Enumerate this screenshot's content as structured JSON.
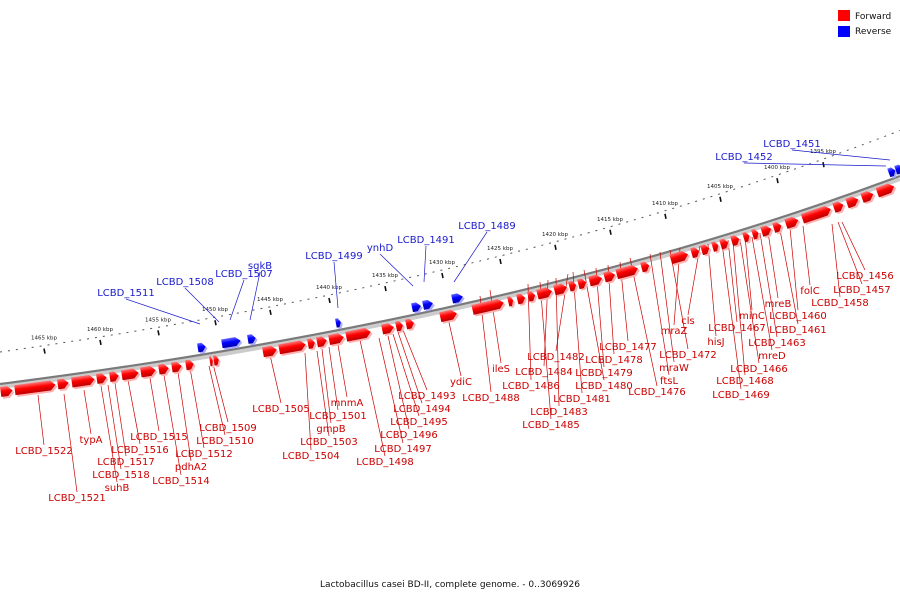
{
  "legend": [
    {
      "label": "Forward",
      "color": "#ff0000"
    },
    {
      "label": "Reverse",
      "color": "#0000ff"
    }
  ],
  "caption": "Lactobacillus casei BD-II, complete genome. - 0..3069926",
  "colors": {
    "forward": "#ff0000",
    "reverse": "#0000ff",
    "backbone": "#808080"
  },
  "ticks": [
    "1395 kbp",
    "1400 kbp",
    "1405 kbp",
    "1410 kbp",
    "1415 kbp",
    "1420 kbp",
    "1425 kbp",
    "1430 kbp",
    "1435 kbp",
    "1440 kbp",
    "1445 kbp",
    "1450 kbp",
    "1455 kbp",
    "1460 kbp",
    "1465 kbp"
  ],
  "forward_labels": [
    "LCBD_1456",
    "LCBD_1457",
    "LCBD_1458",
    "folC",
    "LCBD_1460",
    "LCBD_1461",
    "mreB",
    "LCBD_1463",
    "minC",
    "mreD",
    "LCBD_1466",
    "LCBD_1467",
    "LCBD_1468",
    "LCBD_1469",
    "hisJ",
    "cls",
    "mraZ",
    "LCBD_1472",
    "mraW",
    "ftsL",
    "LCBD_1476",
    "LCBD_1477",
    "LCBD_1478",
    "LCBD_1479",
    "LCBD_1480",
    "LCBD_1481",
    "LCBD_1482",
    "LCBD_1483",
    "LCBD_1484",
    "LCBD_1485",
    "LCBD_1486",
    "ileS",
    "LCBD_1488",
    "ydiC",
    "LCBD_1493",
    "LCBD_1494",
    "LCBD_1495",
    "LCBD_1496",
    "LCBD_1497",
    "LCBD_1498",
    "mnmA",
    "LCBD_1501",
    "gmpB",
    "LCBD_1503",
    "LCBD_1504",
    "LCBD_1505",
    "LCBD_1509",
    "LCBD_1510",
    "LCBD_1512",
    "pdhA2",
    "LCBD_1514",
    "LCBD_1515",
    "LCBD_1516",
    "LCBD_1517",
    "LCBD_1518",
    "suhB",
    "typA",
    "LCBD_1521",
    "LCBD_1522"
  ],
  "reverse_labels": [
    "LCBD_1451",
    "LCBD_1452",
    "LCBD_1489",
    "LCBD_1491",
    "ynhD",
    "LCBD_1499",
    "sgkB",
    "LCBD_1507",
    "LCBD_1508",
    "LCBD_1511"
  ]
}
